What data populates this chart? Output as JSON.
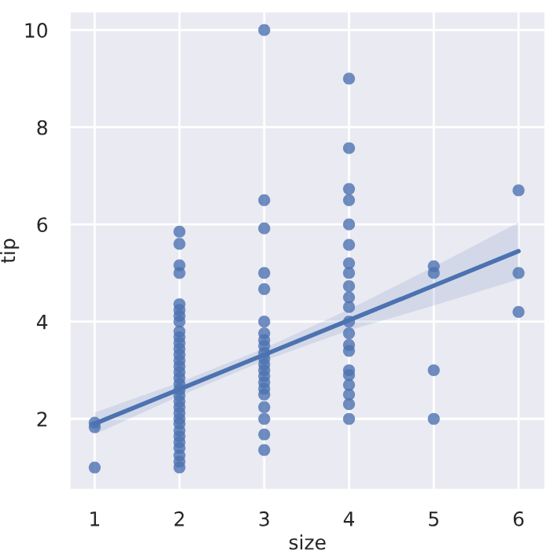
{
  "chart_data": {
    "type": "scatter",
    "xlabel": "size",
    "ylabel": "tip",
    "xlim": [
      0.7,
      6.32
    ],
    "ylim": [
      0.53,
      10.39
    ],
    "xticks": [
      1,
      2,
      3,
      4,
      5,
      6
    ],
    "yticks": [
      2,
      4,
      6,
      8,
      10
    ],
    "grid": true,
    "series": [
      {
        "color": "#4c72b0",
        "marker": "circle",
        "x": [
          1,
          1,
          1,
          2,
          2,
          2,
          2,
          2,
          2,
          2,
          2,
          2,
          2,
          2,
          2,
          2,
          2,
          2,
          2,
          2,
          2,
          2,
          2,
          2,
          2,
          2,
          2,
          2,
          2,
          2,
          2,
          2,
          2,
          2,
          2,
          3,
          3,
          3,
          3,
          3,
          3,
          3,
          3,
          3,
          3,
          3,
          3,
          3,
          3,
          3,
          3,
          3,
          3,
          3,
          3,
          3,
          4,
          4,
          4,
          4,
          4,
          4,
          4,
          4,
          4,
          4,
          4,
          4,
          4,
          4,
          4,
          4,
          4,
          4,
          4,
          4,
          4,
          5,
          5,
          5,
          5,
          6,
          6,
          6
        ],
        "values": [
          1.0,
          1.83,
          1.92,
          1.0,
          1.12,
          1.25,
          1.4,
          1.52,
          1.64,
          1.76,
          1.9,
          2.0,
          2.12,
          2.24,
          2.36,
          2.48,
          2.6,
          2.72,
          2.84,
          2.96,
          3.08,
          3.2,
          3.32,
          3.44,
          3.56,
          3.68,
          3.8,
          4.0,
          4.12,
          4.24,
          4.36,
          5.0,
          5.16,
          5.6,
          5.85,
          1.36,
          1.68,
          2.0,
          2.24,
          2.5,
          2.62,
          2.75,
          2.88,
          3.0,
          3.12,
          3.24,
          3.36,
          3.5,
          3.62,
          3.76,
          4.0,
          4.67,
          5.0,
          5.92,
          6.5,
          10.0,
          2.0,
          2.3,
          2.5,
          2.7,
          2.9,
          3.0,
          3.4,
          3.52,
          3.76,
          4.0,
          4.3,
          4.5,
          4.73,
          5.0,
          5.2,
          5.58,
          6.0,
          6.5,
          6.73,
          7.57,
          9.0,
          2.0,
          3.0,
          5.0,
          5.14,
          4.2,
          5.0,
          6.7
        ]
      },
      {
        "type": "line",
        "color": "#4c72b0",
        "x": [
          1,
          2,
          3,
          4,
          5,
          6
        ],
        "values": [
          1.9,
          2.61,
          3.32,
          4.03,
          4.74,
          5.45
        ],
        "lower": [
          1.68,
          2.47,
          3.2,
          3.82,
          4.33,
          4.87
        ],
        "upper": [
          2.13,
          2.75,
          3.45,
          4.25,
          5.13,
          6.04
        ]
      }
    ]
  }
}
